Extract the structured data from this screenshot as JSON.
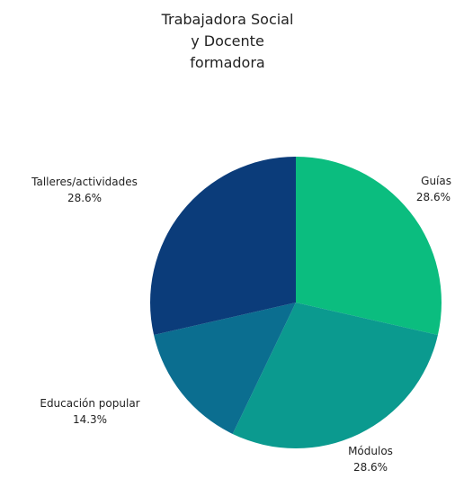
{
  "chart_data": {
    "type": "pie",
    "title_lines": [
      "Trabajadora Social",
      "y Docente",
      "formadora"
    ],
    "slices": [
      {
        "label": "Guías",
        "value": 28.6,
        "pct_label": "28.6%",
        "color": "#0bbd7f"
      },
      {
        "label": "Módulos",
        "value": 28.6,
        "pct_label": "28.6%",
        "color": "#0b9a8f"
      },
      {
        "label": "Educación popular",
        "value": 14.3,
        "pct_label": "14.3%",
        "color": "#0b6e90"
      },
      {
        "label": "Talleres/actividades",
        "value": 28.6,
        "pct_label": "28.6%",
        "color": "#0b3c7a"
      }
    ]
  }
}
